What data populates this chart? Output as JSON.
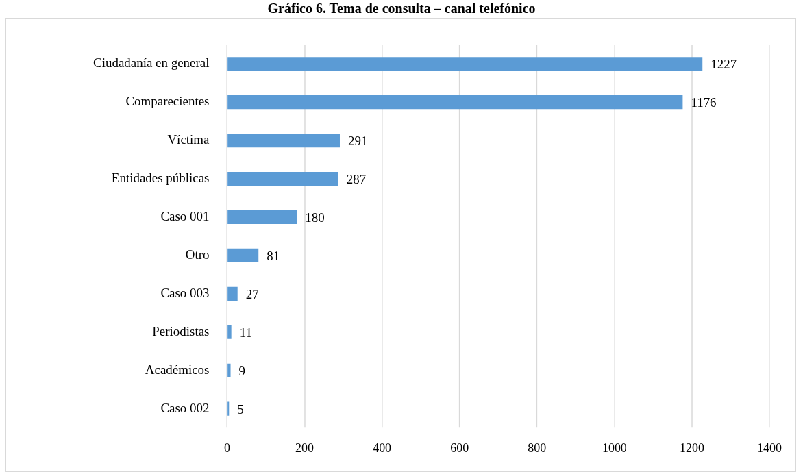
{
  "chart_data": {
    "type": "bar",
    "orientation": "horizontal",
    "title": "Gráfico 6. Tema de consulta – canal telefónico",
    "categories": [
      "Ciudadanía en general",
      "Comparecientes",
      "Víctima",
      "Entidades públicas",
      "Caso 001",
      "Otro",
      "Caso 003",
      "Periodistas",
      "Académicos",
      "Caso 002"
    ],
    "values": [
      1227,
      1176,
      291,
      287,
      180,
      81,
      27,
      11,
      9,
      5
    ],
    "color": "#5b9bd5",
    "xlim": [
      0,
      1400
    ],
    "xticks": [
      0,
      200,
      400,
      600,
      800,
      1000,
      1200,
      1400
    ],
    "grid": "x",
    "data_labels": true
  }
}
